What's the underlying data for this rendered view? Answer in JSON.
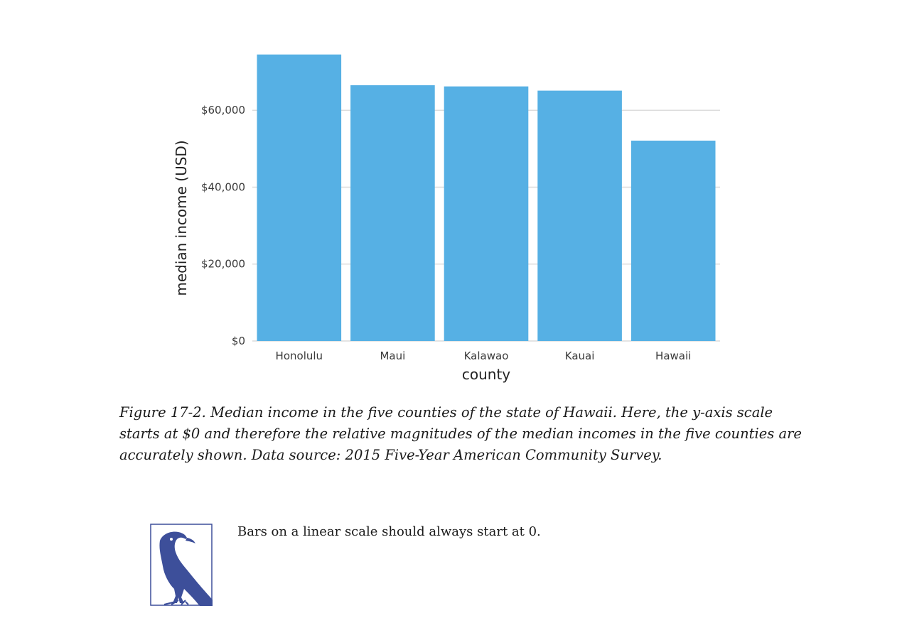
{
  "chart_data": {
    "type": "bar",
    "categories": [
      "Honolulu",
      "Maui",
      "Kalawao",
      "Kauai",
      "Hawaii"
    ],
    "values": [
      74500,
      66500,
      66200,
      65100,
      52100
    ],
    "xlabel": "county",
    "ylabel": "median income (USD)",
    "ylim": [
      0,
      75000
    ],
    "yticks": [
      0,
      20000,
      40000,
      60000
    ],
    "ytick_labels": [
      "$0",
      "$20,000",
      "$40,000",
      "$60,000"
    ],
    "grid": "horizontal",
    "bar_color": "#56b0e4"
  },
  "caption": "Figure 17-2. Median income in the five counties of the state of Hawaii. Here, the y-axis scale starts at $0 and therefore the relative magnitudes of the median incomes in the five counties are accurately shown. Data source: 2015 Five-Year American Community Survey.",
  "note": {
    "icon": "crow-icon",
    "icon_color": "#3d4f9a",
    "text": "Bars on a linear scale should always start at 0."
  }
}
